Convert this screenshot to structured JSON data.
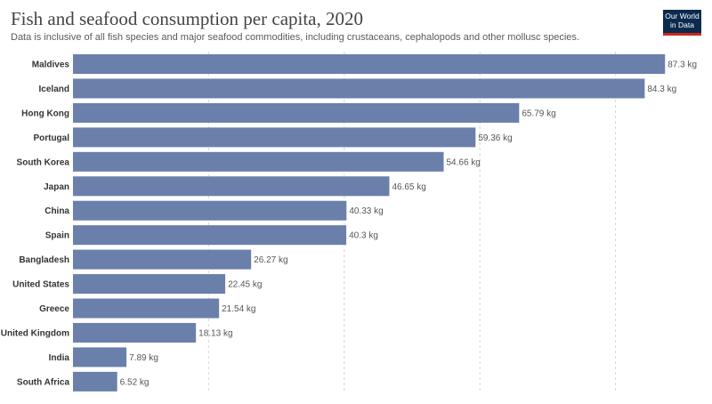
{
  "header": {
    "title": "Fish and seafood consumption per capita, 2020",
    "subtitle": "Data is inclusive of all fish species and major seafood commodities, including crustaceans, cephalopods and other mollusc species.",
    "logo_line1": "Our World",
    "logo_line2": "in Data"
  },
  "colors": {
    "bar": "#6b7fab",
    "logo_bg": "#0b2a4f",
    "logo_accent": "#ce261e"
  },
  "chart_data": {
    "type": "bar",
    "orientation": "horizontal",
    "title": "Fish and seafood consumption per capita, 2020",
    "subtitle": "Data is inclusive of all fish species and major seafood commodities, including crustaceans, cephalopods and other mollusc species.",
    "unit": "kg",
    "xlim": [
      0,
      90
    ],
    "grid": true,
    "categories": [
      "Maldives",
      "Iceland",
      "Hong Kong",
      "Portugal",
      "South Korea",
      "Japan",
      "China",
      "Spain",
      "Bangladesh",
      "United States",
      "Greece",
      "United Kingdom",
      "India",
      "South Africa"
    ],
    "values": [
      87.3,
      84.3,
      65.79,
      59.36,
      54.66,
      46.65,
      40.33,
      40.3,
      26.27,
      22.45,
      21.54,
      18.13,
      7.89,
      6.52
    ],
    "value_labels": [
      "87.3 kg",
      "84.3 kg",
      "65.79 kg",
      "59.36 kg",
      "54.66 kg",
      "46.65 kg",
      "40.33 kg",
      "40.3 kg",
      "26.27 kg",
      "22.45 kg",
      "21.54 kg",
      "18.13 kg",
      "7.89 kg",
      "6.52 kg"
    ]
  }
}
